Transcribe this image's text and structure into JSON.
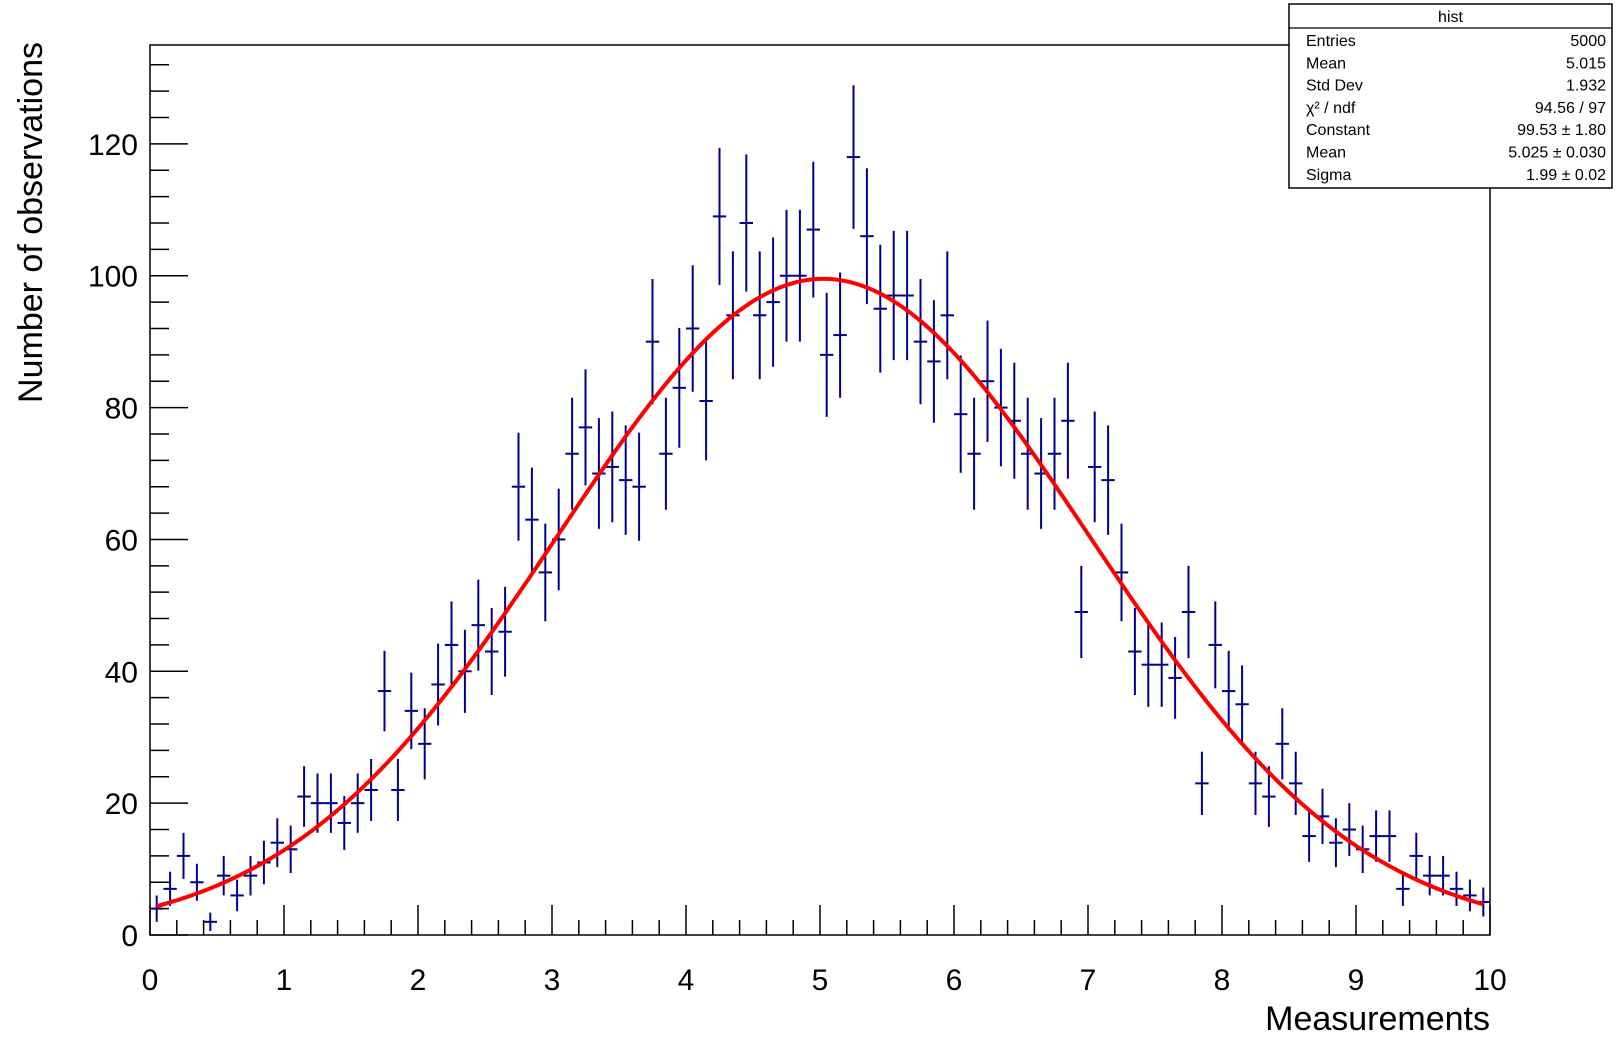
{
  "stats_box": {
    "title": "hist",
    "rows": [
      {
        "label": "Entries",
        "value": "5000"
      },
      {
        "label": "Mean",
        "value": "5.015"
      },
      {
        "label": "Std Dev",
        "value": "1.932"
      },
      {
        "label": "χ² / ndf",
        "value": "94.56 / 97"
      },
      {
        "label": "Constant",
        "value": "99.53 ± 1.80"
      },
      {
        "label": "Mean",
        "value": "5.025 ± 0.030"
      },
      {
        "label": "Sigma",
        "value": "1.99 ± 0.02"
      }
    ]
  },
  "colors": {
    "points": "#00008b",
    "fit": "#ff0000",
    "frame": "#000000"
  },
  "chart_data": {
    "type": "scatter",
    "xlabel": "Measurements",
    "ylabel": "Number of observations",
    "xlim": [
      0,
      10
    ],
    "ylim": [
      0,
      135
    ],
    "xticks": [
      "0",
      "1",
      "2",
      "3",
      "4",
      "5",
      "6",
      "7",
      "8",
      "9",
      "10"
    ],
    "yticks": [
      "0",
      "20",
      "40",
      "60",
      "80",
      "100",
      "120"
    ],
    "legend": "top-right",
    "grid": false,
    "bin_width": 0.1,
    "x": [
      0.05,
      0.15,
      0.25,
      0.35,
      0.45,
      0.55,
      0.65,
      0.75,
      0.85,
      0.95,
      1.05,
      1.15,
      1.25,
      1.35,
      1.45,
      1.55,
      1.65,
      1.75,
      1.85,
      1.95,
      2.05,
      2.15,
      2.25,
      2.35,
      2.45,
      2.55,
      2.65,
      2.75,
      2.85,
      2.95,
      3.05,
      3.15,
      3.25,
      3.35,
      3.45,
      3.55,
      3.65,
      3.75,
      3.85,
      3.95,
      4.05,
      4.15,
      4.25,
      4.35,
      4.45,
      4.55,
      4.65,
      4.75,
      4.85,
      4.95,
      5.05,
      5.15,
      5.25,
      5.35,
      5.45,
      5.55,
      5.65,
      5.75,
      5.85,
      5.95,
      6.05,
      6.15,
      6.25,
      6.35,
      6.45,
      6.55,
      6.65,
      6.75,
      6.85,
      6.95,
      7.05,
      7.15,
      7.25,
      7.35,
      7.45,
      7.55,
      7.65,
      7.75,
      7.85,
      7.95,
      8.05,
      8.15,
      8.25,
      8.35,
      8.45,
      8.55,
      8.65,
      8.75,
      8.85,
      8.95,
      9.05,
      9.15,
      9.25,
      9.35,
      9.45,
      9.55,
      9.65,
      9.75,
      9.85,
      9.95
    ],
    "series": [
      {
        "type": "error-bars",
        "values": [
          4,
          7,
          12,
          8,
          2,
          9,
          6,
          9,
          11,
          14,
          13,
          21,
          20,
          20,
          17,
          20,
          22,
          37,
          22,
          34,
          29,
          38,
          44,
          40,
          47,
          43,
          46,
          68,
          63,
          55,
          60,
          73,
          77,
          70,
          71,
          69,
          68,
          90,
          73,
          83,
          92,
          81,
          109,
          94,
          108,
          94,
          96,
          100,
          100,
          107,
          88,
          91,
          118,
          106,
          95,
          97,
          97,
          90,
          87,
          94,
          79,
          73,
          84,
          80,
          78,
          73,
          70,
          73,
          78,
          49,
          71,
          69,
          55,
          43,
          41,
          41,
          39,
          49,
          23,
          44,
          37,
          35,
          23,
          21,
          29,
          23,
          15,
          18,
          14,
          16,
          13,
          15,
          15,
          7,
          12,
          9,
          9,
          7,
          6,
          5
        ],
        "errors": [
          2,
          2.6,
          3.5,
          2.8,
          1.4,
          3,
          2.4,
          3,
          3.3,
          3.7,
          3.6,
          4.6,
          4.5,
          4.5,
          4.1,
          4.5,
          4.7,
          6.1,
          4.7,
          5.8,
          5.4,
          6.2,
          6.6,
          6.3,
          6.9,
          6.6,
          6.8,
          8.2,
          7.9,
          7.4,
          7.7,
          8.5,
          8.8,
          8.4,
          8.4,
          8.3,
          8.2,
          9.5,
          8.5,
          9.1,
          9.6,
          9,
          10.4,
          9.7,
          10.4,
          9.7,
          9.8,
          10,
          10,
          10.3,
          9.4,
          9.5,
          10.9,
          10.3,
          9.7,
          9.8,
          9.8,
          9.5,
          9.3,
          9.7,
          8.9,
          8.5,
          9.2,
          8.9,
          8.8,
          8.5,
          8.4,
          8.5,
          8.8,
          7,
          8.4,
          8.3,
          7.4,
          6.6,
          6.4,
          6.4,
          6.2,
          7,
          4.8,
          6.6,
          6.1,
          5.9,
          4.8,
          4.6,
          5.4,
          4.8,
          3.9,
          4.2,
          3.7,
          4,
          3.6,
          3.9,
          3.9,
          2.6,
          3.5,
          3,
          3,
          2.6,
          2.4,
          2.2
        ]
      },
      {
        "type": "fit-curve",
        "function": "gaus",
        "constant": 99.53,
        "mean": 5.025,
        "sigma": 1.99
      }
    ]
  }
}
